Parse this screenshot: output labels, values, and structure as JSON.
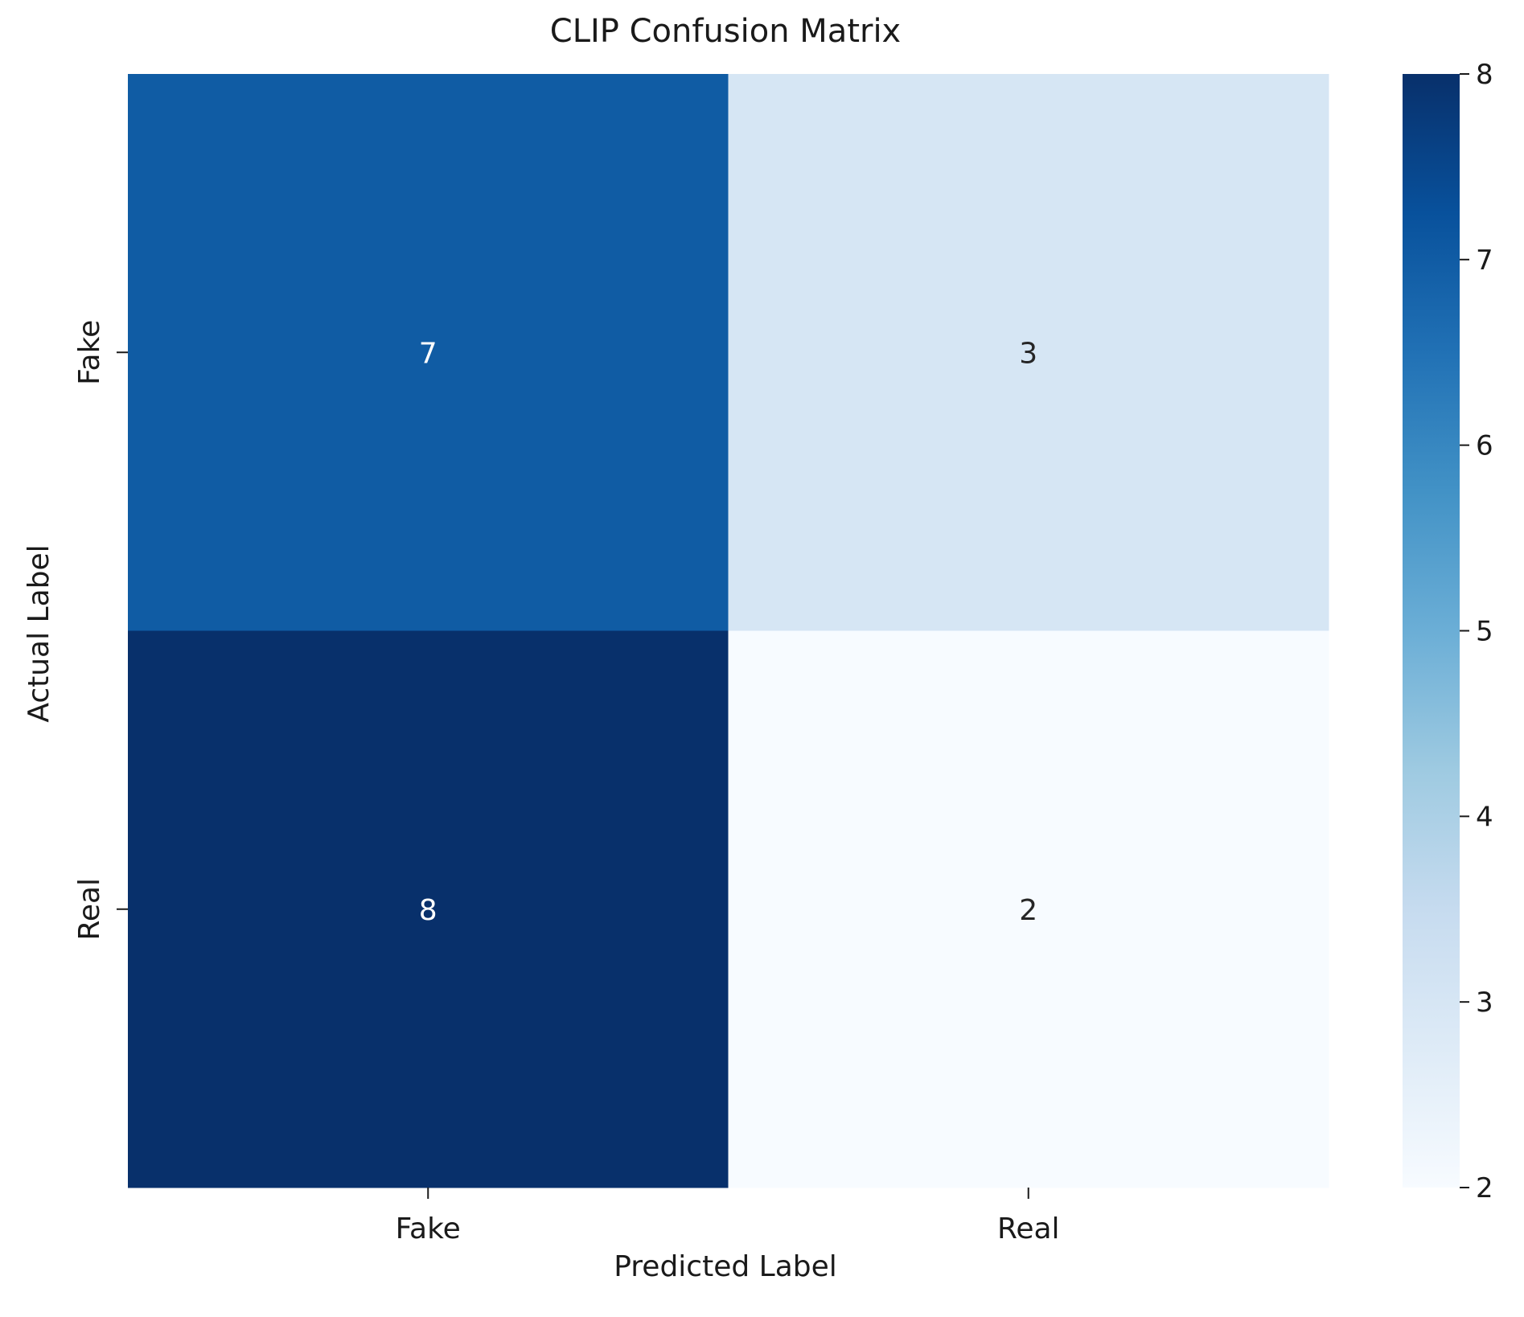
{
  "chart_data": {
    "type": "heatmap",
    "title": "CLIP Confusion Matrix",
    "xlabel": "Predicted Label",
    "ylabel": "Actual Label",
    "x_categories": [
      "Fake",
      "Real"
    ],
    "y_categories": [
      "Fake",
      "Real"
    ],
    "values": [
      [
        7,
        3
      ],
      [
        8,
        2
      ]
    ],
    "colormap": "Blues",
    "color_range": [
      2,
      8
    ],
    "colorbar_ticks": [
      "2",
      "3",
      "4",
      "5",
      "6",
      "7",
      "8"
    ],
    "grid": false,
    "colors": {
      "low": "#f7fbff",
      "high": "#08306b"
    }
  }
}
